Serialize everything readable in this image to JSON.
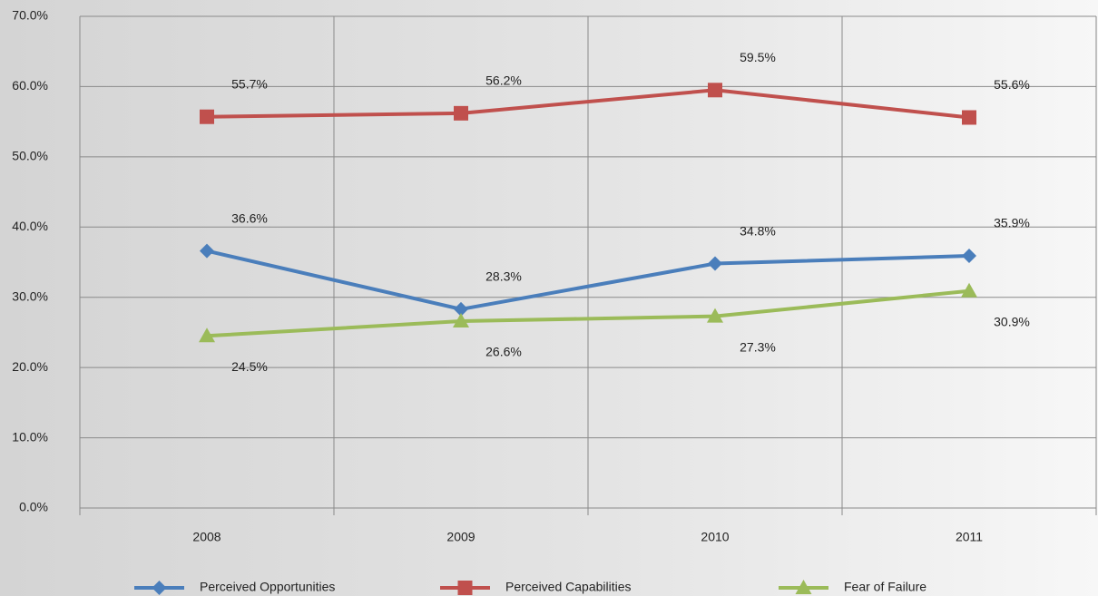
{
  "chart_data": {
    "type": "line",
    "categories": [
      "2008",
      "2009",
      "2010",
      "2011"
    ],
    "series": [
      {
        "name": "Perceived Opportunities",
        "color": "#4a7ebb",
        "marker": "diamond",
        "values": [
          36.6,
          28.3,
          34.8,
          35.9
        ],
        "value_labels": [
          "36.6%",
          "28.3%",
          "34.8%",
          "35.9%"
        ]
      },
      {
        "name": "Perceived Capabilities",
        "color": "#c0504d",
        "marker": "square",
        "values": [
          55.7,
          56.2,
          59.5,
          55.6
        ],
        "value_labels": [
          "55.7%",
          "56.2%",
          "59.5%",
          "55.6%"
        ]
      },
      {
        "name": "Fear of Failure",
        "color": "#9bbb59",
        "marker": "triangle",
        "values": [
          24.5,
          26.6,
          27.3,
          30.9
        ],
        "value_labels": [
          "24.5%",
          "26.6%",
          "27.3%",
          "30.9%"
        ]
      }
    ],
    "ylim": [
      0,
      70
    ],
    "yticks": [
      {
        "value": 0,
        "label": "0.0%"
      },
      {
        "value": 10,
        "label": "10.0%"
      },
      {
        "value": 20,
        "label": "20.0%"
      },
      {
        "value": 30,
        "label": "30.0%"
      },
      {
        "value": 40,
        "label": "40.0%"
      },
      {
        "value": 50,
        "label": "50.0%"
      },
      {
        "value": 60,
        "label": "60.0%"
      },
      {
        "value": 70,
        "label": "70.0%"
      }
    ],
    "grid": true,
    "legend": "bottom"
  }
}
